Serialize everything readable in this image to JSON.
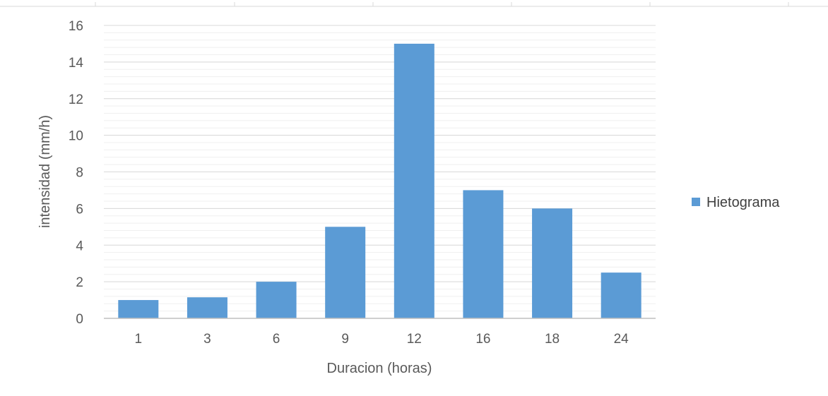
{
  "chart_data": {
    "type": "bar",
    "categories": [
      "1",
      "3",
      "6",
      "9",
      "12",
      "16",
      "18",
      "24"
    ],
    "series": [
      {
        "name": "Hietograma",
        "values": [
          1,
          1.15,
          2,
          5,
          15,
          7,
          6,
          2.5
        ],
        "color": "#5b9bd5"
      }
    ],
    "xlabel": "Duracion (horas)",
    "ylabel": "intensidad (mm/h)",
    "ylim": [
      0,
      16
    ],
    "yticks": [
      0,
      2,
      4,
      6,
      8,
      10,
      12,
      14,
      16
    ],
    "grid": true,
    "legend": "right"
  }
}
